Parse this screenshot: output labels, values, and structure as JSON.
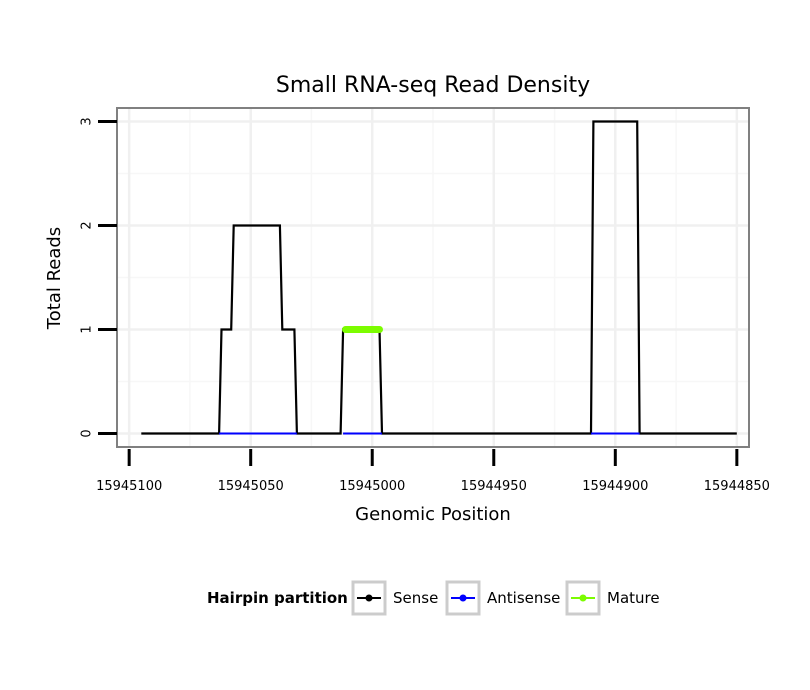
{
  "chart_data": {
    "type": "line",
    "title": "Small RNA-seq Read Density",
    "xlabel": "Genomic Position",
    "ylabel": "Total Reads",
    "x_reversed": true,
    "xlim": [
      15945105,
      15944845
    ],
    "ylim": [
      -0.13,
      3.13
    ],
    "x_ticks": [
      15945100,
      15945050,
      15945000,
      15944950,
      15944900,
      15944850
    ],
    "x_tick_labels": [
      "15945100",
      "15945050",
      "15945000",
      "15944950",
      "15944900",
      "15944850"
    ],
    "y_ticks": [
      0,
      1,
      2,
      3
    ],
    "y_tick_labels": [
      "0",
      "1",
      "2",
      "3"
    ],
    "grid": true,
    "legend": {
      "title": "Hairpin partition",
      "position": "bottom",
      "entries": [
        "Sense",
        "Antisense",
        "Mature"
      ]
    },
    "series": [
      {
        "name": "Sense",
        "color": "#000000",
        "x": [
          15945095,
          15945063,
          15945062,
          15945058,
          15945057,
          15945052,
          15945044,
          15945043,
          15945038,
          15945037,
          15945032,
          15945031,
          15945013,
          15945012,
          15944997,
          15944996,
          15944910,
          15944909,
          15944891,
          15944890,
          15944850
        ],
        "y": [
          0,
          0,
          1,
          1,
          2,
          2,
          2,
          2,
          2,
          1,
          1,
          0,
          0,
          1,
          1,
          0,
          0,
          3,
          3,
          0,
          0
        ]
      },
      {
        "name": "Antisense",
        "color": "#0000ff",
        "x": [
          15945063,
          15945031,
          15945012,
          15944996,
          15944910,
          15944890
        ],
        "y": [
          0,
          0,
          0,
          0,
          0,
          0
        ],
        "segments": [
          [
            15945063,
            15945031
          ],
          [
            15945012,
            15944996
          ],
          [
            15944910,
            15944890
          ]
        ]
      },
      {
        "name": "Mature",
        "color": "#7cfc00",
        "x": [
          15945011,
          15944997
        ],
        "y": [
          1,
          1
        ]
      }
    ]
  },
  "colors": {
    "panel_border": "#808080",
    "grid_major": "#f0f0f0",
    "grid_minor": "#f7f7f7",
    "legend_key_border": "#cccccc"
  }
}
